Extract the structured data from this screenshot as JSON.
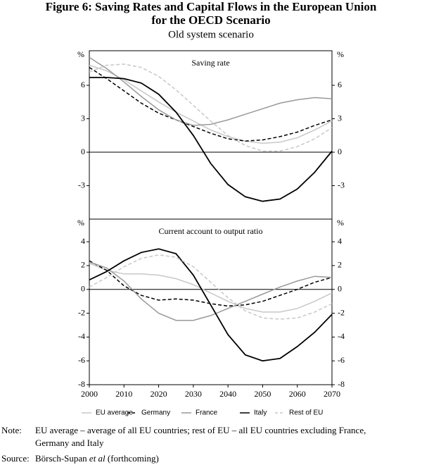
{
  "figure": {
    "title": [
      "Figure 6: Saving Rates and Capital Flows in the European Union",
      "for the OECD Scenario"
    ],
    "subtitle": "Old system scenario",
    "note_label": "Note:",
    "note": [
      "EU average – average of all EU countries; rest of EU – all EU countries excluding France,",
      "Germany and Italy"
    ],
    "source_label": "Source:",
    "source": [
      "Börsch-Supan ",
      "et al",
      " (forthcoming)"
    ]
  },
  "chart_data": [
    {
      "type": "line",
      "title": "Saving rate",
      "y_unit": "%",
      "x": [
        2000,
        2005,
        2010,
        2015,
        2020,
        2025,
        2030,
        2035,
        2040,
        2045,
        2050,
        2055,
        2060,
        2065,
        2070
      ],
      "xlim": [
        2000,
        2070
      ],
      "ylim": [
        -6,
        9.1
      ],
      "yticks": [
        -3,
        0,
        3,
        6
      ],
      "series": [
        {
          "color": "#c8c8c8",
          "dash": false,
          "values": [
            7.8,
            7.3,
            6.5,
            5.5,
            4.5,
            3.6,
            2.8,
            2.0,
            1.4,
            1.0,
            0.8,
            0.9,
            1.3,
            2.0,
            2.8
          ]
        },
        {
          "color": "#000000",
          "dash": true,
          "values": [
            7.6,
            6.6,
            5.5,
            4.4,
            3.5,
            2.9,
            2.3,
            1.7,
            1.2,
            1.0,
            1.1,
            1.4,
            1.8,
            2.4,
            2.9
          ]
        },
        {
          "color": "#999999",
          "dash": false,
          "values": [
            8.5,
            7.5,
            6.3,
            5.0,
            3.8,
            2.9,
            2.4,
            2.5,
            2.9,
            3.4,
            3.9,
            4.4,
            4.7,
            4.9,
            4.8
          ]
        },
        {
          "color": "#000000",
          "dash": false,
          "values": [
            6.7,
            6.7,
            6.6,
            6.2,
            5.2,
            3.6,
            1.5,
            -1.0,
            -2.9,
            -4.0,
            -4.4,
            -4.2,
            -3.3,
            -1.8,
            0.1
          ]
        },
        {
          "color": "#c8c8c8",
          "dash": true,
          "values": [
            7.2,
            7.8,
            7.9,
            7.6,
            6.8,
            5.6,
            4.2,
            2.8,
            1.5,
            0.6,
            0.1,
            0.1,
            0.5,
            1.2,
            2.2
          ]
        }
      ]
    },
    {
      "type": "line",
      "title": "Current account to output ratio",
      "y_unit": "%",
      "x": [
        2000,
        2005,
        2010,
        2015,
        2020,
        2025,
        2030,
        2035,
        2040,
        2045,
        2050,
        2055,
        2060,
        2065,
        2070
      ],
      "xlim": [
        2000,
        2070
      ],
      "xticks": [
        2000,
        2010,
        2020,
        2030,
        2040,
        2050,
        2060,
        2070
      ],
      "ylim": [
        -8,
        5.9
      ],
      "yticks": [
        -8,
        -6,
        -4,
        -2,
        0,
        2,
        4
      ],
      "series": [
        {
          "name": "EU average",
          "color": "#c8c8c8",
          "dash": false,
          "values": [
            2.2,
            1.6,
            1.3,
            1.3,
            1.2,
            0.9,
            0.4,
            -0.3,
            -1.0,
            -1.6,
            -1.9,
            -1.9,
            -1.6,
            -1.0,
            -0.3
          ]
        },
        {
          "name": "Germany",
          "color": "#000000",
          "dash": true,
          "values": [
            2.4,
            1.6,
            0.3,
            -0.5,
            -0.9,
            -0.8,
            -0.9,
            -1.2,
            -1.4,
            -1.3,
            -1.0,
            -0.5,
            0.0,
            0.6,
            1.0
          ]
        },
        {
          "name": "France",
          "color": "#999999",
          "dash": false,
          "values": [
            2.3,
            1.8,
            0.7,
            -0.8,
            -2.0,
            -2.6,
            -2.6,
            -2.2,
            -1.6,
            -1.0,
            -0.4,
            0.2,
            0.7,
            1.1,
            1.0
          ]
        },
        {
          "name": "Italy",
          "color": "#000000",
          "dash": false,
          "values": [
            0.8,
            1.5,
            2.4,
            3.1,
            3.4,
            3.0,
            1.2,
            -1.3,
            -3.8,
            -5.5,
            -6.0,
            -5.8,
            -4.8,
            -3.6,
            -2.1
          ]
        },
        {
          "name": "Rest of EU",
          "color": "#c8c8c8",
          "dash": true,
          "values": [
            0.2,
            1.0,
            1.9,
            2.6,
            2.9,
            2.7,
            1.9,
            0.6,
            -0.7,
            -1.8,
            -2.4,
            -2.5,
            -2.4,
            -1.9,
            -1.2
          ]
        }
      ]
    }
  ]
}
